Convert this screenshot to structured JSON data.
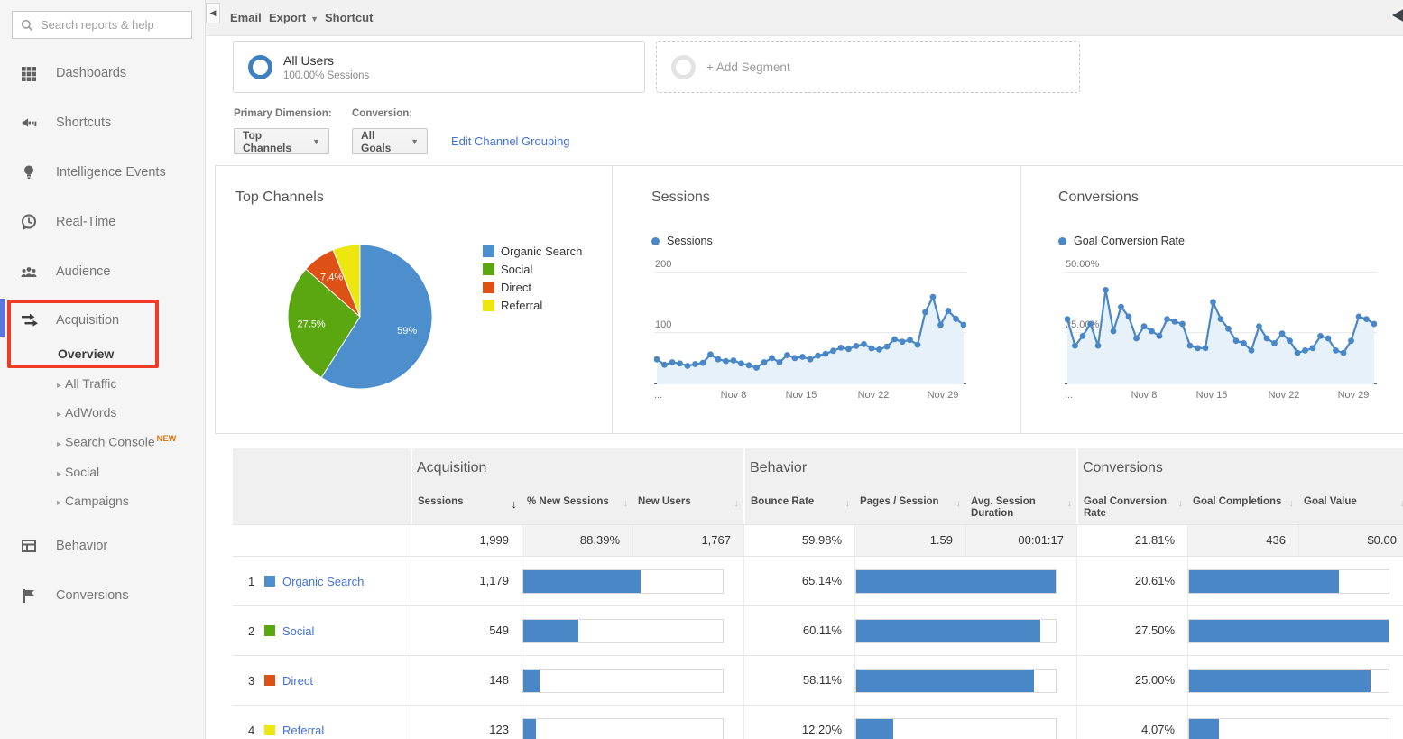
{
  "topbar": {
    "email": "Email",
    "export": "Export",
    "shortcut": "Shortcut"
  },
  "segments": {
    "all_users": "All Users",
    "all_users_sub": "100.00% Sessions",
    "add_segment": "+ Add Segment"
  },
  "controls": {
    "primary_dimension_label": "Primary Dimension:",
    "primary_dimension_value": "Top Channels",
    "conversion_label": "Conversion:",
    "conversion_value": "All Goals",
    "edit_link": "Edit Channel Grouping"
  },
  "sidebar": {
    "search_placeholder": "Search reports & help",
    "items": [
      "Dashboards",
      "Shortcuts",
      "Intelligence Events",
      "Real-Time",
      "Audience"
    ],
    "acquisition": {
      "label": "Acquisition",
      "overview": "Overview",
      "children": [
        "All Traffic",
        "AdWords",
        "Search Console",
        "Social",
        "Campaigns"
      ],
      "new_badge": "NEW"
    },
    "behavior": "Behavior",
    "conversions": "Conversions"
  },
  "colors": {
    "line_blue": "#4a87c6",
    "area_blue": "#e7f1fa",
    "link_blue": "#4372d8",
    "annotation_red": "#ee3b24"
  },
  "chart_data": [
    {
      "type": "pie",
      "title": "Top Channels",
      "labels": [
        "Organic Search",
        "Social",
        "Direct",
        "Referral"
      ],
      "values": [
        59.0,
        27.5,
        7.4,
        6.1
      ],
      "slice_labels": [
        "59%",
        "27.5%",
        "7.4%",
        ""
      ],
      "colors": [
        "#4d8ecc",
        "#5aa712",
        "#dd5116",
        "#ebe70f"
      ],
      "legend_position": "right"
    },
    {
      "type": "line",
      "title": "Sessions",
      "legend": "Sessions",
      "ylim": [
        0,
        200
      ],
      "yticks": [
        "200",
        "100"
      ],
      "xticks": [
        "...",
        "Nov 8",
        "Nov 15",
        "Nov 22",
        "Nov 29"
      ],
      "grid": true,
      "values": [
        55,
        46,
        50,
        48,
        44,
        47,
        49,
        63,
        55,
        52,
        53,
        48,
        45,
        41,
        50,
        57,
        50,
        62,
        57,
        59,
        55,
        61,
        64,
        69,
        74,
        72,
        77,
        80,
        73,
        71,
        76,
        88,
        84,
        87,
        79,
        133,
        158,
        112,
        135,
        122,
        112
      ]
    },
    {
      "type": "line",
      "title": "Conversions",
      "legend": "Goal Conversion Rate",
      "ylim": [
        0,
        50
      ],
      "yticks": [
        "50.00%",
        "25.00%"
      ],
      "xticks": [
        "...",
        "Nov 8",
        "Nov 15",
        "Nov 22",
        "Nov 29"
      ],
      "grid": true,
      "values": [
        30,
        19,
        23,
        28,
        19,
        42,
        25,
        35,
        31,
        22,
        27,
        25,
        23,
        30,
        29,
        28,
        19,
        18,
        18,
        37,
        30,
        26,
        21,
        20,
        17,
        27,
        22,
        20,
        24,
        21,
        16,
        17,
        18,
        23,
        22,
        17,
        16,
        21,
        31,
        30,
        28
      ]
    }
  ],
  "table": {
    "groups": [
      "Acquisition",
      "Behavior",
      "Conversions"
    ],
    "columns": [
      "Sessions",
      "% New Sessions",
      "New Users",
      "Bounce Rate",
      "Pages / Session",
      "Avg. Session Duration",
      "Goal Conversion Rate",
      "Goal Completions",
      "Goal Value"
    ],
    "totals": {
      "sessions": "1,999",
      "new_sessions": "88.39%",
      "new_users": "1,767",
      "bounce": "59.98%",
      "pages": "1.59",
      "duration": "00:01:17",
      "goal_rate": "21.81%",
      "completions": "436",
      "value": "$0.00"
    },
    "rows": [
      {
        "rank": "1",
        "channel": "Organic Search",
        "color": "#4d8ecc",
        "sessions": "1,179",
        "bounce": "65.14%",
        "goal_rate": "20.61%",
        "bars": {
          "sessions_pct": 58.6,
          "bounce_pct": 100,
          "goal_pct": 74.9
        }
      },
      {
        "rank": "2",
        "channel": "Social",
        "color": "#5aa712",
        "sessions": "549",
        "bounce": "60.11%",
        "goal_rate": "27.50%",
        "bars": {
          "sessions_pct": 27.6,
          "bounce_pct": 92.3,
          "goal_pct": 100
        }
      },
      {
        "rank": "3",
        "channel": "Direct",
        "color": "#dd5116",
        "sessions": "148",
        "bounce": "58.11%",
        "goal_rate": "25.00%",
        "bars": {
          "sessions_pct": 8.0,
          "bounce_pct": 89.2,
          "goal_pct": 90.9
        }
      },
      {
        "rank": "4",
        "channel": "Referral",
        "color": "#ebe70f",
        "sessions": "123",
        "bounce": "12.20%",
        "goal_rate": "4.07%",
        "bars": {
          "sessions_pct": 6.4,
          "bounce_pct": 18.7,
          "goal_pct": 14.8
        }
      }
    ]
  }
}
